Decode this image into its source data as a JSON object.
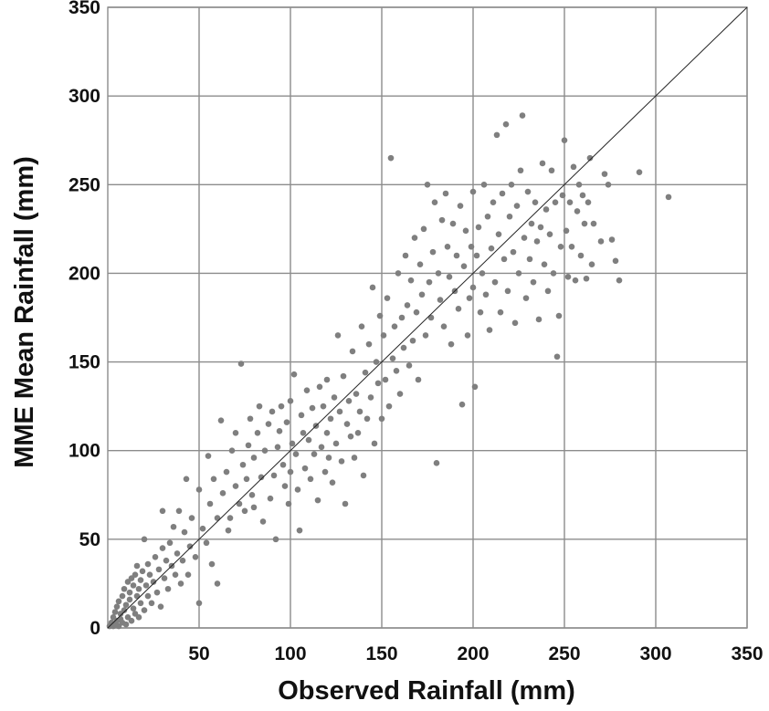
{
  "chart_data": {
    "type": "scatter",
    "title": "",
    "xlabel": "Observed Rainfall (mm)",
    "ylabel": "MME Mean Rainfall (mm)",
    "xlim": [
      0,
      350
    ],
    "ylim": [
      0,
      350
    ],
    "x_ticks": [
      50,
      100,
      150,
      200,
      250,
      300,
      350
    ],
    "y_ticks": [
      0,
      50,
      100,
      150,
      200,
      250,
      300,
      350
    ],
    "grid": true,
    "legend": "none",
    "reference_line": {
      "from": [
        0,
        0
      ],
      "to": [
        350,
        350
      ]
    },
    "colors": {
      "points": "#7f7f7f",
      "grid": "#8c8c8c",
      "reference_line": "#222222"
    },
    "series": [
      {
        "points": [
          [
            1,
            1
          ],
          [
            2,
            3
          ],
          [
            3,
            1
          ],
          [
            3,
            6
          ],
          [
            4,
            2
          ],
          [
            4,
            9
          ],
          [
            5,
            4
          ],
          [
            5,
            12
          ],
          [
            6,
            1
          ],
          [
            6,
            15
          ],
          [
            7,
            5
          ],
          [
            7,
            8
          ],
          [
            8,
            3
          ],
          [
            8,
            18
          ],
          [
            9,
            10
          ],
          [
            9,
            22
          ],
          [
            10,
            2
          ],
          [
            10,
            13
          ],
          [
            11,
            26
          ],
          [
            11,
            6
          ],
          [
            12,
            16
          ],
          [
            12,
            20
          ],
          [
            13,
            4
          ],
          [
            13,
            28
          ],
          [
            14,
            11
          ],
          [
            14,
            24
          ],
          [
            15,
            8
          ],
          [
            15,
            30
          ],
          [
            16,
            18
          ],
          [
            16,
            35
          ],
          [
            17,
            6
          ],
          [
            17,
            22
          ],
          [
            18,
            14
          ],
          [
            18,
            27
          ],
          [
            19,
            32
          ],
          [
            20,
            10
          ],
          [
            20,
            50
          ],
          [
            21,
            24
          ],
          [
            22,
            18
          ],
          [
            22,
            36
          ],
          [
            23,
            30
          ],
          [
            24,
            14
          ],
          [
            25,
            26
          ],
          [
            26,
            40
          ],
          [
            27,
            20
          ],
          [
            28,
            33
          ],
          [
            29,
            12
          ],
          [
            30,
            45
          ],
          [
            30,
            66
          ],
          [
            31,
            28
          ],
          [
            32,
            38
          ],
          [
            33,
            22
          ],
          [
            34,
            48
          ],
          [
            35,
            35
          ],
          [
            36,
            57
          ],
          [
            37,
            30
          ],
          [
            38,
            42
          ],
          [
            39,
            66
          ],
          [
            40,
            25
          ],
          [
            41,
            38
          ],
          [
            42,
            54
          ],
          [
            43,
            84
          ],
          [
            44,
            30
          ],
          [
            45,
            46
          ],
          [
            46,
            62
          ],
          [
            48,
            40
          ],
          [
            50,
            14
          ],
          [
            50,
            78
          ],
          [
            52,
            56
          ],
          [
            54,
            48
          ],
          [
            55,
            97
          ],
          [
            56,
            70
          ],
          [
            57,
            36
          ],
          [
            58,
            84
          ],
          [
            60,
            25
          ],
          [
            60,
            62
          ],
          [
            62,
            117
          ],
          [
            63,
            76
          ],
          [
            65,
            88
          ],
          [
            66,
            55
          ],
          [
            67,
            62
          ],
          [
            68,
            100
          ],
          [
            70,
            80
          ],
          [
            70,
            110
          ],
          [
            72,
            70
          ],
          [
            73,
            149
          ],
          [
            74,
            92
          ],
          [
            75,
            66
          ],
          [
            76,
            84
          ],
          [
            77,
            103
          ],
          [
            78,
            118
          ],
          [
            79,
            75
          ],
          [
            80,
            68
          ],
          [
            80,
            96
          ],
          [
            82,
            110
          ],
          [
            83,
            125
          ],
          [
            84,
            85
          ],
          [
            85,
            60
          ],
          [
            86,
            100
          ],
          [
            88,
            115
          ],
          [
            89,
            73
          ],
          [
            90,
            122
          ],
          [
            91,
            86
          ],
          [
            92,
            50
          ],
          [
            93,
            102
          ],
          [
            94,
            111
          ],
          [
            95,
            125
          ],
          [
            96,
            92
          ],
          [
            97,
            80
          ],
          [
            98,
            116
          ],
          [
            99,
            70
          ],
          [
            100,
            88
          ],
          [
            100,
            128
          ],
          [
            101,
            104
          ],
          [
            102,
            143
          ],
          [
            103,
            98
          ],
          [
            104,
            78
          ],
          [
            105,
            55
          ],
          [
            106,
            120
          ],
          [
            107,
            110
          ],
          [
            108,
            90
          ],
          [
            109,
            134
          ],
          [
            110,
            106
          ],
          [
            111,
            84
          ],
          [
            112,
            124
          ],
          [
            113,
            98
          ],
          [
            114,
            114
          ],
          [
            115,
            72
          ],
          [
            116,
            136
          ],
          [
            117,
            102
          ],
          [
            118,
            125
          ],
          [
            119,
            88
          ],
          [
            120,
            110
          ],
          [
            120,
            140
          ],
          [
            121,
            96
          ],
          [
            122,
            118
          ],
          [
            123,
            82
          ],
          [
            124,
            130
          ],
          [
            125,
            104
          ],
          [
            126,
            165
          ],
          [
            127,
            122
          ],
          [
            128,
            94
          ],
          [
            129,
            142
          ],
          [
            130,
            70
          ],
          [
            131,
            115
          ],
          [
            132,
            128
          ],
          [
            133,
            108
          ],
          [
            134,
            156
          ],
          [
            135,
            96
          ],
          [
            136,
            132
          ],
          [
            137,
            110
          ],
          [
            138,
            122
          ],
          [
            139,
            170
          ],
          [
            140,
            86
          ],
          [
            141,
            144
          ],
          [
            142,
            118
          ],
          [
            143,
            160
          ],
          [
            144,
            130
          ],
          [
            145,
            192
          ],
          [
            146,
            104
          ],
          [
            147,
            150
          ],
          [
            148,
            138
          ],
          [
            149,
            176
          ],
          [
            150,
            118
          ],
          [
            151,
            165
          ],
          [
            152,
            140
          ],
          [
            153,
            186
          ],
          [
            154,
            125
          ],
          [
            155,
            265
          ],
          [
            156,
            152
          ],
          [
            157,
            170
          ],
          [
            158,
            145
          ],
          [
            159,
            200
          ],
          [
            160,
            132
          ],
          [
            161,
            175
          ],
          [
            162,
            158
          ],
          [
            163,
            210
          ],
          [
            164,
            182
          ],
          [
            165,
            148
          ],
          [
            166,
            196
          ],
          [
            167,
            162
          ],
          [
            168,
            220
          ],
          [
            169,
            178
          ],
          [
            170,
            140
          ],
          [
            171,
            205
          ],
          [
            172,
            188
          ],
          [
            173,
            225
          ],
          [
            174,
            165
          ],
          [
            175,
            250
          ],
          [
            176,
            195
          ],
          [
            177,
            175
          ],
          [
            178,
            212
          ],
          [
            179,
            240
          ],
          [
            180,
            93
          ],
          [
            181,
            200
          ],
          [
            182,
            185
          ],
          [
            183,
            230
          ],
          [
            184,
            170
          ],
          [
            185,
            245
          ],
          [
            186,
            215
          ],
          [
            187,
            198
          ],
          [
            188,
            160
          ],
          [
            189,
            228
          ],
          [
            190,
            190
          ],
          [
            191,
            210
          ],
          [
            192,
            180
          ],
          [
            193,
            238
          ],
          [
            194,
            126
          ],
          [
            195,
            204
          ],
          [
            196,
            224
          ],
          [
            197,
            165
          ],
          [
            198,
            186
          ],
          [
            199,
            215
          ],
          [
            200,
            192
          ],
          [
            200,
            246
          ],
          [
            201,
            136
          ],
          [
            202,
            210
          ],
          [
            203,
            226
          ],
          [
            204,
            178
          ],
          [
            205,
            200
          ],
          [
            206,
            250
          ],
          [
            207,
            188
          ],
          [
            208,
            232
          ],
          [
            209,
            168
          ],
          [
            210,
            214
          ],
          [
            211,
            240
          ],
          [
            212,
            195
          ],
          [
            213,
            278
          ],
          [
            214,
            222
          ],
          [
            215,
            178
          ],
          [
            216,
            245
          ],
          [
            217,
            208
          ],
          [
            218,
            284
          ],
          [
            219,
            190
          ],
          [
            220,
            232
          ],
          [
            221,
            250
          ],
          [
            222,
            212
          ],
          [
            223,
            172
          ],
          [
            224,
            238
          ],
          [
            225,
            200
          ],
          [
            226,
            258
          ],
          [
            227,
            289
          ],
          [
            228,
            220
          ],
          [
            229,
            186
          ],
          [
            230,
            246
          ],
          [
            231,
            208
          ],
          [
            232,
            228
          ],
          [
            233,
            195
          ],
          [
            234,
            240
          ],
          [
            235,
            218
          ],
          [
            236,
            174
          ],
          [
            237,
            226
          ],
          [
            238,
            262
          ],
          [
            239,
            205
          ],
          [
            240,
            236
          ],
          [
            241,
            190
          ],
          [
            242,
            222
          ],
          [
            243,
            258
          ],
          [
            244,
            200
          ],
          [
            245,
            240
          ],
          [
            246,
            153
          ],
          [
            247,
            176
          ],
          [
            248,
            215
          ],
          [
            249,
            244
          ],
          [
            250,
            275
          ],
          [
            251,
            224
          ],
          [
            252,
            198
          ],
          [
            253,
            240
          ],
          [
            254,
            215
          ],
          [
            255,
            260
          ],
          [
            256,
            196
          ],
          [
            257,
            235
          ],
          [
            258,
            250
          ],
          [
            259,
            210
          ],
          [
            260,
            244
          ],
          [
            261,
            228
          ],
          [
            262,
            197
          ],
          [
            263,
            240
          ],
          [
            264,
            265
          ],
          [
            265,
            205
          ],
          [
            266,
            228
          ],
          [
            270,
            218
          ],
          [
            272,
            256
          ],
          [
            274,
            250
          ],
          [
            276,
            219
          ],
          [
            278,
            207
          ],
          [
            280,
            196
          ],
          [
            291,
            257
          ],
          [
            307,
            243
          ]
        ]
      }
    ]
  }
}
